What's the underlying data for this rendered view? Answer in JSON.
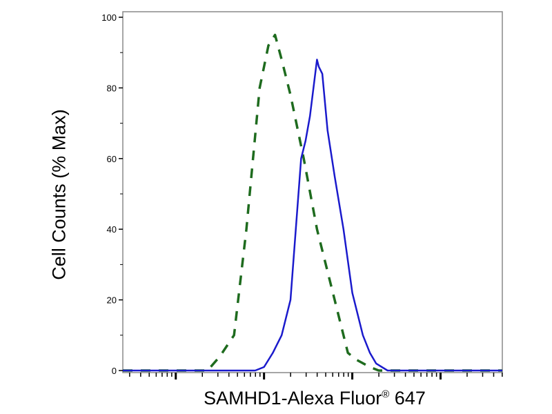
{
  "chart_data": {
    "type": "line",
    "title": "",
    "xlabel": {
      "main": "SAMHD1-Alexa Fluor",
      "symbol": "®",
      "suffix": " 647"
    },
    "ylabel": "Cell Counts (% Max)",
    "x_scale": "log (unlabeled decades)",
    "xlim_decades": [
      -0.6,
      3.7
    ],
    "ylim": [
      0,
      100
    ],
    "yticks": [
      "0",
      "20",
      "40",
      "60",
      "80",
      "100"
    ],
    "grid": false,
    "legend": "none",
    "series": [
      {
        "style": "dashed",
        "color": "#1e6b1e",
        "x_decades": [
          -0.6,
          0.1,
          0.36,
          0.5,
          0.66,
          0.8,
          0.95,
          1.05,
          1.125,
          1.2,
          1.3,
          1.45,
          1.6,
          1.8,
          1.95,
          2.05,
          2.2,
          2.3,
          3.7
        ],
        "y": [
          0,
          0,
          0,
          4,
          10,
          40,
          80,
          92,
          95,
          88,
          78,
          60,
          40,
          20,
          5,
          3,
          1,
          0,
          0
        ]
      },
      {
        "style": "solid",
        "color": "#1a1acc",
        "x_decades": [
          -0.6,
          0.9,
          1.0,
          1.1,
          1.2,
          1.3,
          1.42,
          1.47,
          1.52,
          1.6,
          1.62,
          1.66,
          1.72,
          1.8,
          1.9,
          2.0,
          2.12,
          2.2,
          2.27,
          2.4,
          3.7
        ],
        "y": [
          0,
          0,
          1,
          5,
          10,
          20,
          60,
          65,
          72,
          88,
          86,
          84,
          68,
          55,
          40,
          22,
          10,
          5,
          2,
          0,
          0
        ]
      }
    ]
  }
}
